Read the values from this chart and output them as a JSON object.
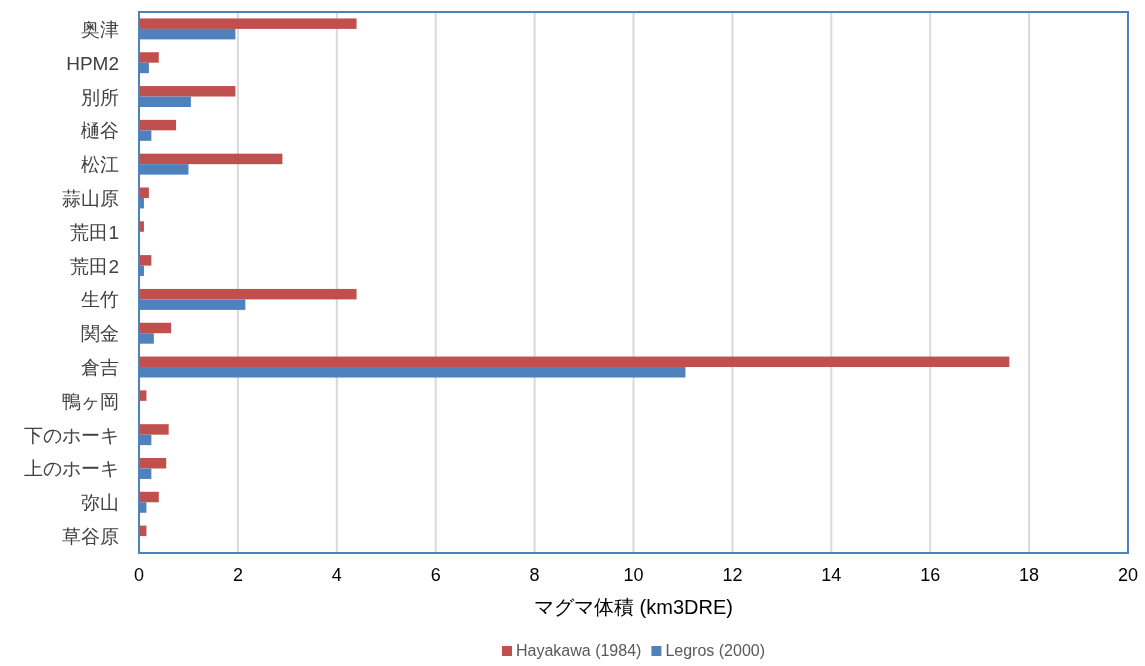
{
  "chart_data": {
    "type": "bar",
    "orientation": "horizontal",
    "categories": [
      "奥津",
      "HPM2",
      "別所",
      "樋谷",
      "松江",
      "蒜山原",
      "荒田1",
      "荒田2",
      "生竹",
      "関金",
      "倉吉",
      "鴨ヶ岡",
      "下のホーキ",
      "上のホーキ",
      "弥山",
      "草谷原"
    ],
    "series": [
      {
        "name": "Hayakawa (1984)",
        "color": "#c0504d",
        "values": [
          4.4,
          0.4,
          1.95,
          0.75,
          2.9,
          0.2,
          0.1,
          0.25,
          4.4,
          0.65,
          17.6,
          0.15,
          0.6,
          0.55,
          0.4,
          0.15
        ]
      },
      {
        "name": "Legros (2000)",
        "color": "#4f81bd",
        "values": [
          1.95,
          0.2,
          1.05,
          0.25,
          1.0,
          0.1,
          0.02,
          0.1,
          2.15,
          0.3,
          11.05,
          0.02,
          0.25,
          0.25,
          0.15,
          0.02
        ]
      }
    ],
    "xlabel": "マグマ体積 (km3DRE)",
    "xlim": [
      0,
      20
    ],
    "xticks": [
      0,
      2,
      4,
      6,
      8,
      10,
      12,
      14,
      16,
      18,
      20
    ],
    "grid": "x",
    "legend": "bottom"
  }
}
